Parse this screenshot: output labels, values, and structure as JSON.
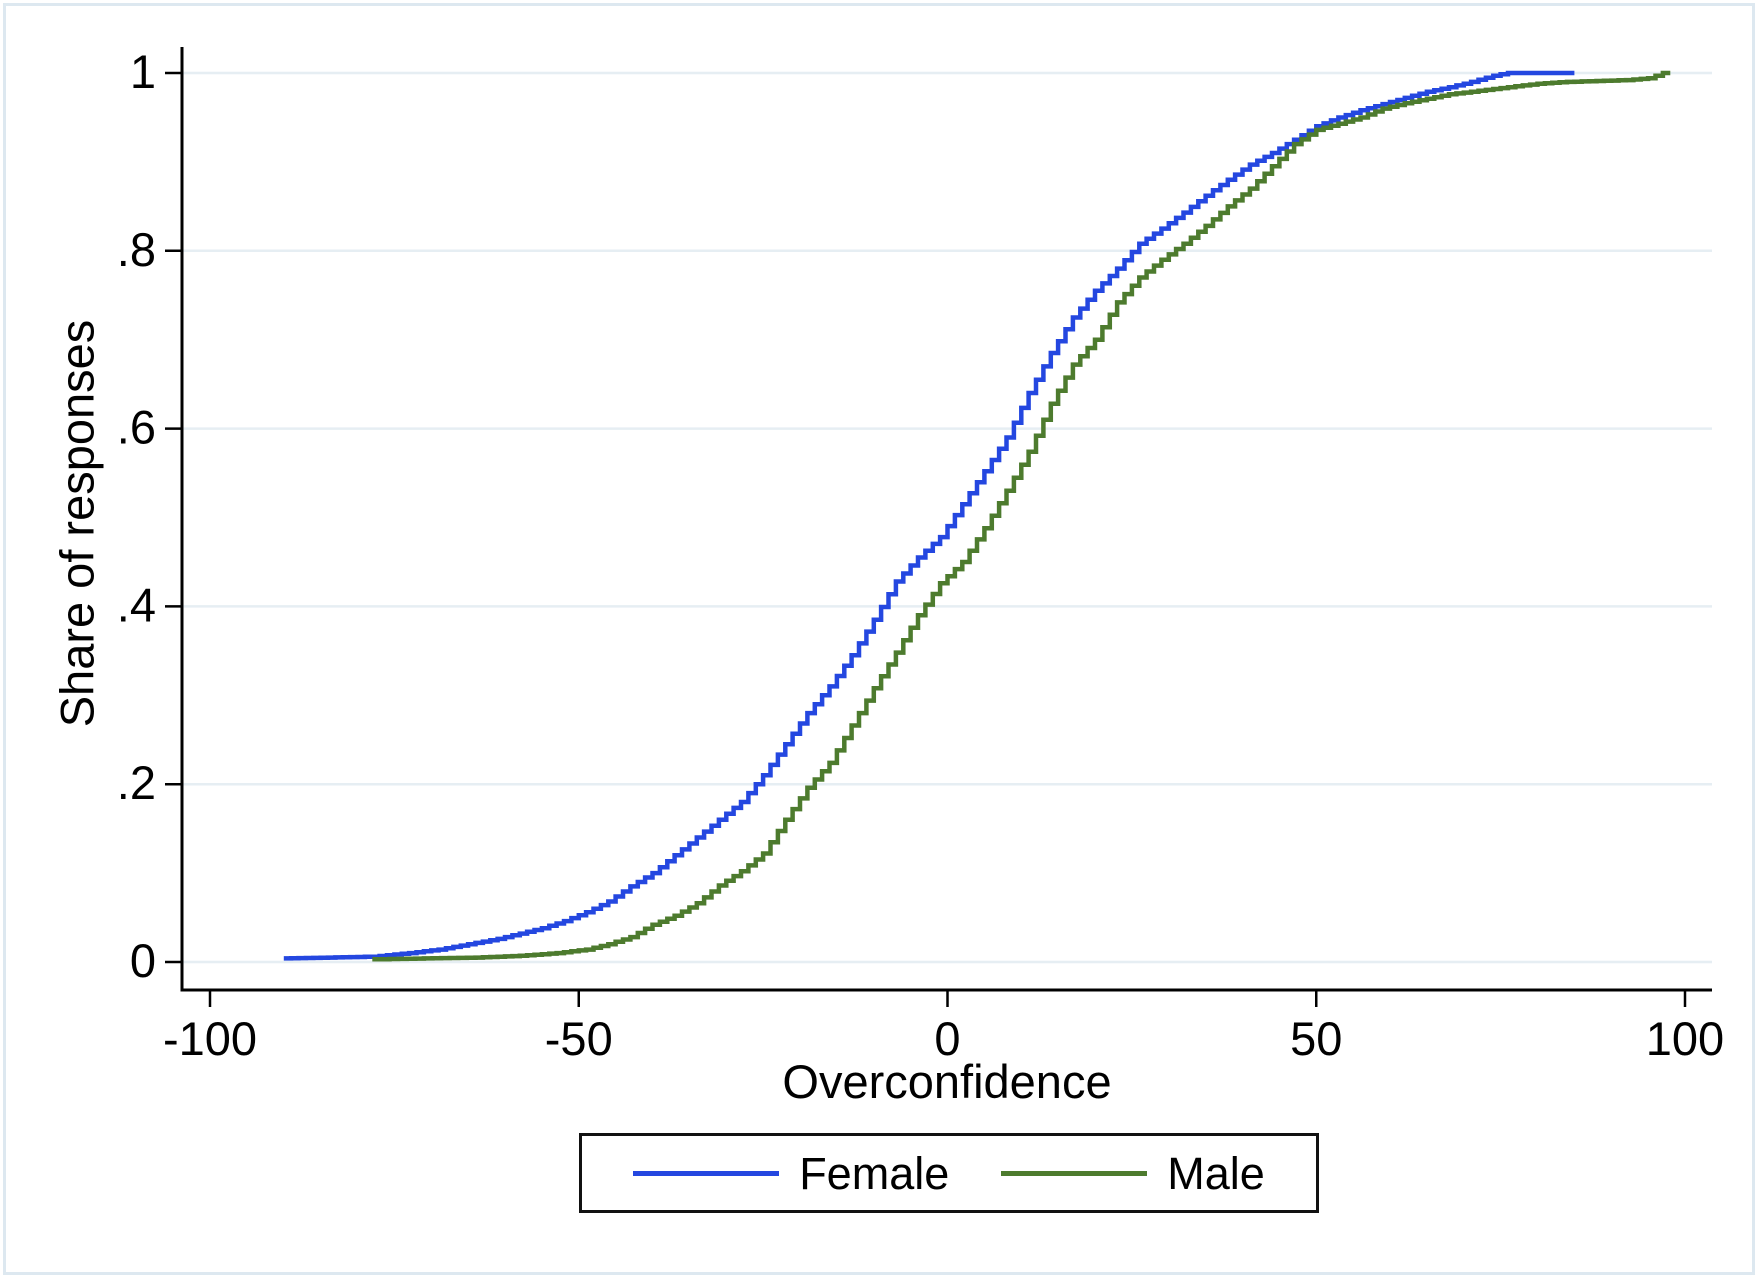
{
  "figure": {
    "x_axis_title": "Overconfidence",
    "y_axis_title": "Share of responses"
  },
  "legend": {
    "items": [
      {
        "label": "Female",
        "color": "#2447e0"
      },
      {
        "label": "Male",
        "color": "#4d7b2e"
      }
    ]
  },
  "colors": {
    "axis": "#000000",
    "gridline": "#e6eef3",
    "frame": "#dde8f0",
    "female_line": "#2447e0",
    "male_line": "#4d7b2e"
  },
  "chart_data": {
    "type": "line",
    "subtype": "ecdf-step",
    "title": "",
    "xlabel": "Overconfidence",
    "ylabel": "Share of responses",
    "xlim": [
      -100,
      100
    ],
    "ylim": [
      0,
      1
    ],
    "grid": "horizontal",
    "legend_position": "bottom",
    "x_ticks": [
      {
        "value": -100,
        "label": "-100"
      },
      {
        "value": -50,
        "label": "-50"
      },
      {
        "value": 0,
        "label": "0"
      },
      {
        "value": 50,
        "label": "50"
      },
      {
        "value": 100,
        "label": "100"
      }
    ],
    "y_ticks": [
      {
        "value": 0,
        "label": "0"
      },
      {
        "value": 0.2,
        "label": ".2"
      },
      {
        "value": 0.4,
        "label": ".4"
      },
      {
        "value": 0.6,
        "label": ".6"
      },
      {
        "value": 0.8,
        "label": ".8"
      },
      {
        "value": 1,
        "label": "1"
      }
    ],
    "series": [
      {
        "name": "Female",
        "color": "#2447e0",
        "points": [
          [
            -90,
            0.004
          ],
          [
            -84,
            0.005
          ],
          [
            -78,
            0.006
          ],
          [
            -73,
            0.01
          ],
          [
            -69,
            0.014
          ],
          [
            -65,
            0.02
          ],
          [
            -61,
            0.026
          ],
          [
            -58,
            0.032
          ],
          [
            -55,
            0.038
          ],
          [
            -52,
            0.046
          ],
          [
            -49,
            0.056
          ],
          [
            -46,
            0.068
          ],
          [
            -43,
            0.085
          ],
          [
            -40,
            0.1
          ],
          [
            -37,
            0.12
          ],
          [
            -34,
            0.14
          ],
          [
            -31,
            0.16
          ],
          [
            -28,
            0.18
          ],
          [
            -25,
            0.21
          ],
          [
            -22,
            0.245
          ],
          [
            -19,
            0.28
          ],
          [
            -16,
            0.31
          ],
          [
            -13,
            0.345
          ],
          [
            -10,
            0.385
          ],
          [
            -7,
            0.428
          ],
          [
            -4,
            0.455
          ],
          [
            -1,
            0.478
          ],
          [
            2,
            0.515
          ],
          [
            5,
            0.552
          ],
          [
            8,
            0.59
          ],
          [
            11,
            0.64
          ],
          [
            14,
            0.685
          ],
          [
            17,
            0.725
          ],
          [
            20,
            0.755
          ],
          [
            23,
            0.78
          ],
          [
            26,
            0.808
          ],
          [
            29,
            0.825
          ],
          [
            32,
            0.843
          ],
          [
            35,
            0.862
          ],
          [
            38,
            0.88
          ],
          [
            41,
            0.897
          ],
          [
            44,
            0.91
          ],
          [
            47,
            0.925
          ],
          [
            50,
            0.94
          ],
          [
            53,
            0.95
          ],
          [
            56,
            0.958
          ],
          [
            59,
            0.965
          ],
          [
            62,
            0.972
          ],
          [
            65,
            0.979
          ],
          [
            68,
            0.984
          ],
          [
            71,
            0.99
          ],
          [
            74,
            0.997
          ],
          [
            76,
            1
          ],
          [
            85,
            1
          ]
        ]
      },
      {
        "name": "Male",
        "color": "#4d7b2e",
        "points": [
          [
            -78,
            0.003
          ],
          [
            -71,
            0.004
          ],
          [
            -64,
            0.005
          ],
          [
            -58,
            0.007
          ],
          [
            -53,
            0.01
          ],
          [
            -49,
            0.014
          ],
          [
            -46,
            0.02
          ],
          [
            -43,
            0.028
          ],
          [
            -40,
            0.042
          ],
          [
            -37,
            0.052
          ],
          [
            -34,
            0.066
          ],
          [
            -31,
            0.086
          ],
          [
            -28,
            0.102
          ],
          [
            -25,
            0.122
          ],
          [
            -22,
            0.16
          ],
          [
            -19,
            0.196
          ],
          [
            -16,
            0.224
          ],
          [
            -13,
            0.266
          ],
          [
            -10,
            0.308
          ],
          [
            -7,
            0.348
          ],
          [
            -4,
            0.39
          ],
          [
            -1,
            0.426
          ],
          [
            2,
            0.45
          ],
          [
            5,
            0.488
          ],
          [
            8,
            0.53
          ],
          [
            11,
            0.574
          ],
          [
            14,
            0.628
          ],
          [
            17,
            0.672
          ],
          [
            20,
            0.7
          ],
          [
            23,
            0.742
          ],
          [
            26,
            0.77
          ],
          [
            29,
            0.79
          ],
          [
            32,
            0.808
          ],
          [
            35,
            0.828
          ],
          [
            38,
            0.85
          ],
          [
            41,
            0.87
          ],
          [
            44,
            0.895
          ],
          [
            47,
            0.92
          ],
          [
            50,
            0.936
          ],
          [
            53,
            0.943
          ],
          [
            56,
            0.95
          ],
          [
            59,
            0.96
          ],
          [
            62,
            0.966
          ],
          [
            65,
            0.971
          ],
          [
            68,
            0.976
          ],
          [
            72,
            0.98
          ],
          [
            76,
            0.984
          ],
          [
            80,
            0.988
          ],
          [
            84,
            0.99
          ],
          [
            88,
            0.991
          ],
          [
            92,
            0.992
          ],
          [
            95,
            0.994
          ],
          [
            97,
            1
          ],
          [
            98,
            1
          ]
        ]
      }
    ]
  }
}
